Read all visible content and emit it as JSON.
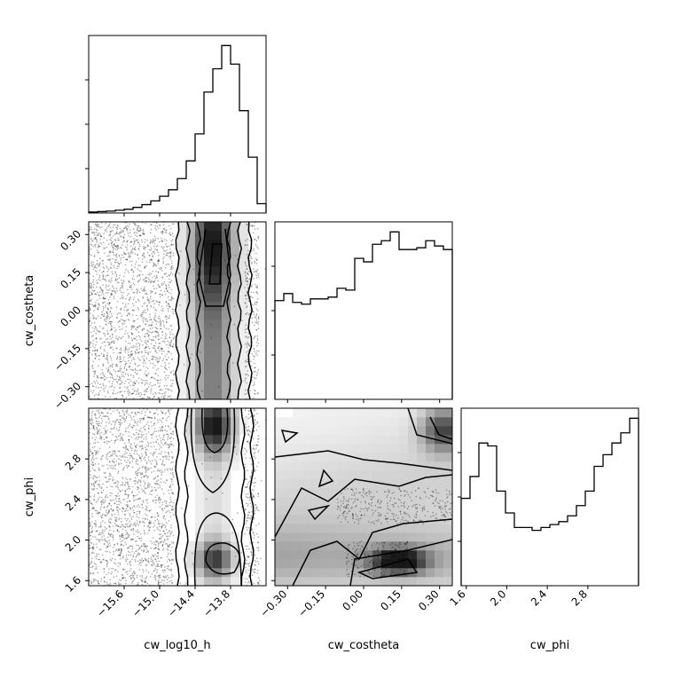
{
  "chart_data": {
    "type": "corner",
    "parameters": [
      "cw_log10_h",
      "cw_costheta",
      "cw_phi"
    ],
    "xlabels": [
      "cw_log10_h",
      "cw_costheta",
      "cw_phi"
    ],
    "ylabels": [
      "",
      "cw_costheta",
      "cw_phi"
    ],
    "ranges": [
      [
        -16.2,
        -13.2
      ],
      [
        -0.35,
        0.35
      ],
      [
        1.55,
        3.3
      ]
    ],
    "ticks": [
      [
        "−15.6",
        "−15.0",
        "−14.4",
        "−13.8"
      ],
      [
        "−0.30",
        "−0.15",
        "0.00",
        "0.15",
        "0.30"
      ],
      [
        "1.6",
        "2.0",
        "2.4",
        "2.8"
      ]
    ],
    "tick_values": [
      [
        -15.6,
        -15.0,
        -14.4,
        -13.8
      ],
      [
        -0.3,
        -0.15,
        0.0,
        0.15,
        0.3
      ],
      [
        1.6,
        2.0,
        2.4,
        2.8
      ]
    ],
    "histograms": [
      {
        "parameter": "cw_log10_h",
        "bin_edges": [
          -16.2,
          -16.05,
          -15.9,
          -15.75,
          -15.6,
          -15.45,
          -15.3,
          -15.15,
          -15.0,
          -14.85,
          -14.7,
          -14.55,
          -14.4,
          -14.25,
          -14.1,
          -13.95,
          -13.8,
          -13.65,
          -13.5,
          -13.35,
          -13.2
        ],
        "counts": [
          1,
          1.5,
          2,
          3,
          4,
          6,
          9,
          13,
          18,
          25,
          37,
          56,
          85,
          130,
          155,
          180,
          160,
          110,
          60,
          10
        ]
      },
      {
        "parameter": "cw_costheta",
        "bin_edges": [
          -0.35,
          -0.315,
          -0.28,
          -0.245,
          -0.21,
          -0.175,
          -0.14,
          -0.105,
          -0.07,
          -0.035,
          0.0,
          0.035,
          0.07,
          0.105,
          0.14,
          0.175,
          0.21,
          0.245,
          0.28,
          0.315,
          0.35
        ],
        "counts": [
          56,
          60,
          55,
          54,
          57,
          57,
          58,
          63,
          62,
          80,
          78,
          88,
          90,
          95,
          85,
          85,
          86,
          90,
          87,
          85
        ]
      },
      {
        "parameter": "cw_phi",
        "bin_edges": [
          1.55,
          1.6375,
          1.725,
          1.8125,
          1.9,
          1.9875,
          2.075,
          2.1625,
          2.25,
          2.3375,
          2.425,
          2.5125,
          2.6,
          2.6875,
          2.775,
          2.8625,
          2.95,
          3.0375,
          3.125,
          3.2125,
          3.3
        ],
        "counts": [
          60,
          75,
          98,
          96,
          65,
          50,
          40,
          40,
          38,
          40,
          42,
          44,
          48,
          55,
          65,
          82,
          90,
          98,
          105,
          115
        ]
      }
    ],
    "joint_densities": [
      {
        "x": "cw_log10_h",
        "y": "cw_costheta",
        "peak": [
          -13.95,
          0.2
        ],
        "description_of_shape": "band"
      },
      {
        "x": "cw_log10_h",
        "y": "cw_phi",
        "peaks": [
          [
            -13.95,
            3.1
          ],
          [
            -13.85,
            1.85
          ]
        ]
      },
      {
        "x": "cw_costheta",
        "y": "cw_phi",
        "peaks": [
          [
            0.15,
            1.8
          ],
          [
            0.3,
            3.1
          ]
        ]
      }
    ],
    "grid": false,
    "legend": "none"
  }
}
